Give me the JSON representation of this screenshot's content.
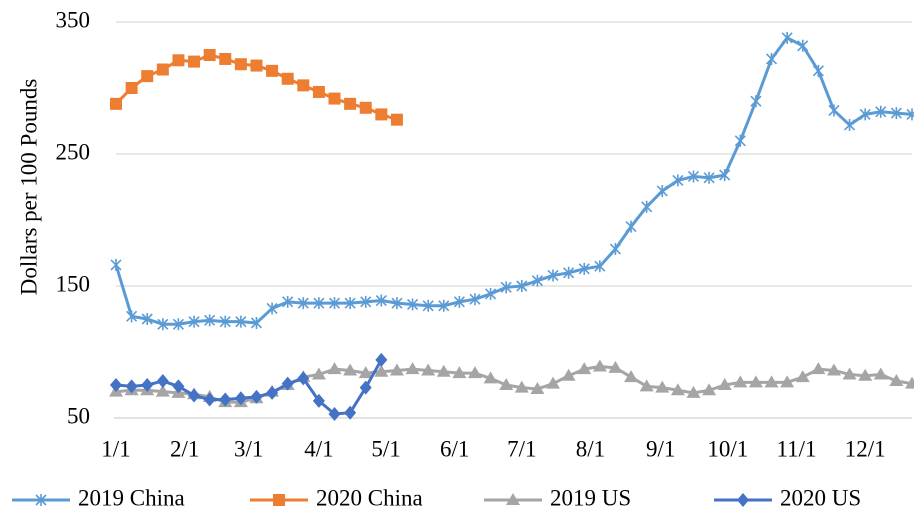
{
  "chart_data": {
    "type": "line",
    "title": "",
    "xlabel": "",
    "ylabel": "Dollars per 100 Pounds",
    "ylim": [
      50,
      350
    ],
    "yticks": [
      50,
      150,
      250,
      350
    ],
    "xlim": [
      1,
      52
    ],
    "xticks": [
      {
        "label": "1/1",
        "week": 1
      },
      {
        "label": "2/1",
        "week": 5.4
      },
      {
        "label": "3/1",
        "week": 9.5
      },
      {
        "label": "4/1",
        "week": 14
      },
      {
        "label": "5/1",
        "week": 18.3
      },
      {
        "label": "6/1",
        "week": 22.7
      },
      {
        "label": "7/1",
        "week": 27
      },
      {
        "label": "8/1",
        "week": 31.4
      },
      {
        "label": "9/1",
        "week": 35.9
      },
      {
        "label": "10/1",
        "week": 40.2
      },
      {
        "label": "11/1",
        "week": 44.6
      },
      {
        "label": "12/1",
        "week": 49
      }
    ],
    "grid": "horizontal",
    "legend_position": "bottom",
    "series": [
      {
        "name": "2019 China",
        "color": "#5B9BD5",
        "marker": "star",
        "values": [
          166,
          127,
          125,
          121,
          121,
          123,
          124,
          123,
          123,
          122,
          133,
          138,
          137,
          137,
          137,
          137,
          138,
          139,
          137,
          136,
          135,
          135,
          138,
          140,
          144,
          149,
          150,
          154,
          158,
          160,
          163,
          165,
          178,
          195,
          210,
          222,
          230,
          233,
          232,
          234,
          260,
          290,
          322,
          338,
          332,
          313,
          283,
          272,
          280,
          282,
          281,
          280
        ]
      },
      {
        "name": "2020 China",
        "color": "#ED7D31",
        "marker": "square",
        "values": [
          288,
          300,
          309,
          314,
          321,
          320,
          325,
          322,
          318,
          317,
          313,
          307,
          302,
          297,
          292,
          288,
          285,
          280,
          276
        ]
      },
      {
        "name": "2019 US",
        "color": "#A5A5A5",
        "marker": "triangle",
        "values": [
          70,
          71,
          71,
          70,
          69,
          68,
          66,
          62,
          62,
          65,
          70,
          75,
          81,
          83,
          87,
          86,
          84,
          85,
          86,
          87,
          86,
          85,
          84,
          84,
          80,
          75,
          73,
          72,
          76,
          82,
          87,
          89,
          88,
          81,
          74,
          73,
          71,
          69,
          71,
          75,
          77,
          77,
          77,
          77,
          81,
          87,
          86,
          83,
          82,
          83,
          78,
          76
        ]
      },
      {
        "name": "2020 US",
        "color": "#4472C4",
        "marker": "diamond",
        "values": [
          75,
          74,
          75,
          78,
          74,
          67,
          64,
          64,
          65,
          66,
          69,
          76,
          80,
          63,
          53,
          54,
          73,
          94
        ]
      }
    ]
  }
}
